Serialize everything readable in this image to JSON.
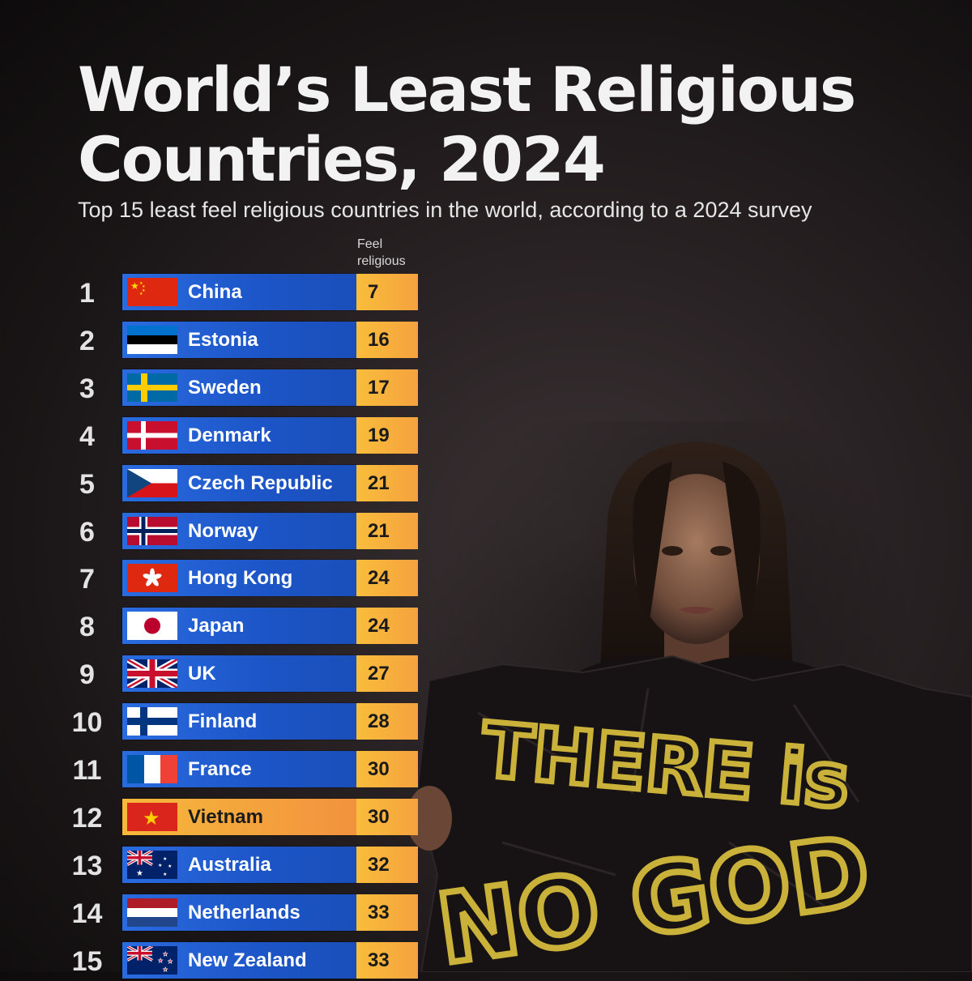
{
  "header": {
    "title": "World’s Least Religious Countries, 2024",
    "subtitle": "Top 15 least feel religious countries in the world, according to a 2024 survey"
  },
  "column_header": {
    "line1": "Feel",
    "line2": "religious"
  },
  "photo": {
    "sign_line1": "THERE is",
    "sign_line2": "NO GOD"
  },
  "colors": {
    "bar_blue": "#1c55c7",
    "value_orange": "#f5a23e",
    "highlight_orange": "#f4a13d",
    "background": "#1e191a"
  },
  "chart_data": {
    "type": "table",
    "title": "World’s Least Religious Countries, 2024",
    "subtitle": "Top 15 least feel religious countries in the world, according to a 2024 survey",
    "value_label": "Feel religious",
    "highlighted": "Vietnam",
    "rows": [
      {
        "rank": 1,
        "country": "China",
        "flag": "china-flag",
        "value": 7
      },
      {
        "rank": 2,
        "country": "Estonia",
        "flag": "estonia-flag",
        "value": 16
      },
      {
        "rank": 3,
        "country": "Sweden",
        "flag": "sweden-flag",
        "value": 17
      },
      {
        "rank": 4,
        "country": "Denmark",
        "flag": "denmark-flag",
        "value": 19
      },
      {
        "rank": 5,
        "country": "Czech Republic",
        "flag": "czech-flag",
        "value": 21
      },
      {
        "rank": 6,
        "country": "Norway",
        "flag": "norway-flag",
        "value": 21
      },
      {
        "rank": 7,
        "country": "Hong Kong",
        "flag": "hong-kong-flag",
        "value": 24
      },
      {
        "rank": 8,
        "country": "Japan",
        "flag": "japan-flag",
        "value": 24
      },
      {
        "rank": 9,
        "country": "UK",
        "flag": "uk-flag",
        "value": 27
      },
      {
        "rank": 10,
        "country": "Finland",
        "flag": "finland-flag",
        "value": 28
      },
      {
        "rank": 11,
        "country": "France",
        "flag": "france-flag",
        "value": 30
      },
      {
        "rank": 12,
        "country": "Vietnam",
        "flag": "vietnam-flag",
        "value": 30
      },
      {
        "rank": 13,
        "country": "Australia",
        "flag": "australia-flag",
        "value": 32
      },
      {
        "rank": 14,
        "country": "Netherlands",
        "flag": "netherlands-flag",
        "value": 33
      },
      {
        "rank": 15,
        "country": "New Zealand",
        "flag": "new-zealand-flag",
        "value": 33
      }
    ]
  }
}
